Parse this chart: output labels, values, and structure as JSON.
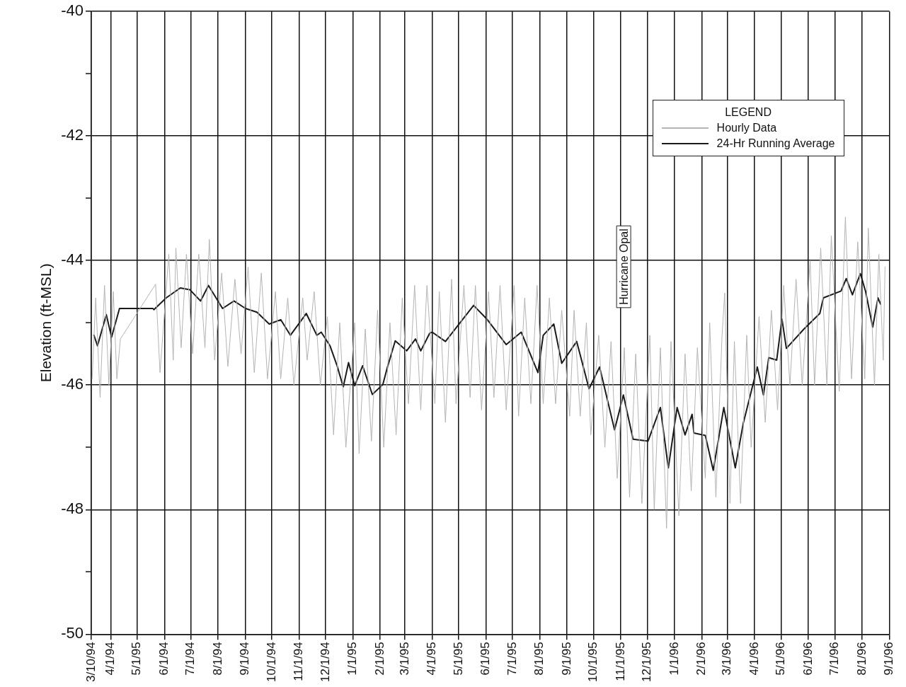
{
  "chart_data": {
    "type": "line",
    "ylabel": "Elevation (ft-MSL)",
    "legend_title": "LEGEND",
    "legend": "top right",
    "grid": true,
    "marker": "none",
    "line_style": "solid",
    "xlim": [
      "1994-03-10",
      "1996-09-01"
    ],
    "xticks": [
      {
        "value": "1994-03-10",
        "label": "3/10/94"
      },
      {
        "value": "1994-04-01",
        "label": "4/1/94"
      },
      {
        "value": "1994-05-01",
        "label": "5/1/95"
      },
      {
        "value": "1994-06-01",
        "label": "6/1/94"
      },
      {
        "value": "1994-07-01",
        "label": "7/1/94"
      },
      {
        "value": "1994-08-01",
        "label": "8/1/94"
      },
      {
        "value": "1994-09-01",
        "label": "9/1/94"
      },
      {
        "value": "1994-10-01",
        "label": "10/1/94"
      },
      {
        "value": "1994-11-01",
        "label": "11/1/94"
      },
      {
        "value": "1994-12-01",
        "label": "12/1/94"
      },
      {
        "value": "1995-01-01",
        "label": "1/1/95"
      },
      {
        "value": "1995-02-01",
        "label": "2/1/95"
      },
      {
        "value": "1995-03-01",
        "label": "3/1/95"
      },
      {
        "value": "1995-04-01",
        "label": "4/1/95"
      },
      {
        "value": "1995-05-01",
        "label": "5/1/95"
      },
      {
        "value": "1995-06-01",
        "label": "6/1/95"
      },
      {
        "value": "1995-07-01",
        "label": "7/1/95"
      },
      {
        "value": "1995-08-01",
        "label": "8/1/95"
      },
      {
        "value": "1995-09-01",
        "label": "9/1/95"
      },
      {
        "value": "1995-10-01",
        "label": "10/1/95"
      },
      {
        "value": "1995-11-01",
        "label": "11/1/95"
      },
      {
        "value": "1995-12-01",
        "label": "12/1/95"
      },
      {
        "value": "1996-01-01",
        "label": "1/1/96"
      },
      {
        "value": "1996-02-01",
        "label": "2/1/96"
      },
      {
        "value": "1996-03-01",
        "label": "3/1/96"
      },
      {
        "value": "1996-04-01",
        "label": "4/1/96"
      },
      {
        "value": "1996-05-01",
        "label": "5/1/96"
      },
      {
        "value": "1996-06-01",
        "label": "6/1/96"
      },
      {
        "value": "1996-07-01",
        "label": "7/1/96"
      },
      {
        "value": "1996-08-01",
        "label": "8/1/96"
      },
      {
        "value": "1996-09-01",
        "label": "9/1/96"
      }
    ],
    "ylim": [
      -50,
      -40
    ],
    "yticks": [
      -50,
      {
        "value": -49,
        "label": null
      },
      -48,
      {
        "value": -47,
        "label": null
      },
      -46,
      {
        "value": -45,
        "label": null
      },
      -44,
      {
        "value": -43,
        "label": null
      },
      -42,
      {
        "value": -41,
        "label": null
      },
      -40
    ],
    "annotations": [
      "Hurricane Opal"
    ],
    "series": [
      {
        "name": "Hourly Data",
        "color": "#b4b4b4",
        "x": [
          "1994-03-11",
          "1994-03-15",
          "1994-03-20",
          "1994-03-25",
          "1994-03-30",
          "1994-04-04",
          "1994-04-08",
          "1994-04-12",
          "1994-05-22",
          "1994-05-27",
          "1994-06-06",
          "1994-06-11",
          "1994-06-14",
          "1994-06-20",
          "1994-06-26",
          "1994-07-03",
          "1994-07-10",
          "1994-07-17",
          "1994-07-22",
          "1994-07-28",
          "1994-08-05",
          "1994-08-12",
          "1994-08-20",
          "1994-08-27",
          "1994-09-04",
          "1994-09-11",
          "1994-09-19",
          "1994-09-26",
          "1994-10-05",
          "1994-10-11",
          "1994-10-19",
          "1994-10-26",
          "1994-11-05",
          "1994-11-10",
          "1994-11-18",
          "1994-11-25",
          "1994-12-03",
          "1994-12-10",
          "1994-12-17",
          "1994-12-24",
          "1995-01-03",
          "1995-01-08",
          "1995-01-15",
          "1995-01-22",
          "1995-01-29",
          "1995-02-05",
          "1995-02-12",
          "1995-02-19",
          "1995-02-26",
          "1995-03-05",
          "1995-03-12",
          "1995-03-19",
          "1995-03-26",
          "1995-04-04",
          "1995-04-09",
          "1995-04-16",
          "1995-04-23",
          "1995-04-28",
          "1995-05-07",
          "1995-05-14",
          "1995-05-20",
          "1995-05-27",
          "1995-06-04",
          "1995-06-10",
          "1995-06-17",
          "1995-06-24",
          "1995-07-03",
          "1995-07-08",
          "1995-07-15",
          "1995-07-22",
          "1995-07-29",
          "1995-08-05",
          "1995-08-12",
          "1995-08-19",
          "1995-08-26",
          "1995-09-04",
          "1995-09-09",
          "1995-09-16",
          "1995-09-23",
          "1995-09-28",
          "1995-10-07",
          "1995-10-14",
          "1995-10-21",
          "1995-10-28",
          "1995-11-05",
          "1995-11-11",
          "1995-11-18",
          "1995-11-25",
          "1995-12-04",
          "1995-12-09",
          "1995-12-16",
          "1995-12-23",
          "1995-12-28",
          "1996-01-06",
          "1996-01-13",
          "1996-01-20",
          "1996-01-27",
          "1996-02-05",
          "1996-02-10",
          "1996-02-17",
          "1996-02-24",
          "1996-02-27",
          "1996-03-04",
          "1996-03-09",
          "1996-03-16",
          "1996-03-23",
          "1996-03-28",
          "1996-04-06",
          "1996-04-13",
          "1996-04-20",
          "1996-04-27",
          "1996-05-04",
          "1996-05-11",
          "1996-05-18",
          "1996-05-25",
          "1996-06-03",
          "1996-06-08",
          "1996-06-15",
          "1996-06-22",
          "1996-06-27",
          "1996-07-06",
          "1996-07-13",
          "1996-07-20",
          "1996-07-27",
          "1996-08-04",
          "1996-08-08",
          "1996-08-15",
          "1996-08-20",
          "1996-08-25",
          "1996-08-27"
        ],
        "values": [
          -45.9,
          -44.6,
          -46.2,
          -44.4,
          -46.0,
          -44.5,
          -45.9,
          -45.26,
          -44.38,
          -45.8,
          -43.9,
          -45.6,
          -43.8,
          -45.4,
          -43.9,
          -45.5,
          -43.9,
          -45.4,
          -43.66,
          -45.6,
          -44.2,
          -45.7,
          -44.3,
          -45.5,
          -44.1,
          -45.8,
          -44.2,
          -45.9,
          -44.5,
          -45.9,
          -44.6,
          -46.0,
          -44.6,
          -45.6,
          -44.5,
          -46.0,
          -44.9,
          -46.8,
          -45.0,
          -47.0,
          -45.0,
          -47.1,
          -45.1,
          -46.9,
          -44.8,
          -47.0,
          -45.0,
          -46.8,
          -44.6,
          -46.3,
          -44.4,
          -46.4,
          -44.4,
          -46.3,
          -44.5,
          -46.6,
          -44.3,
          -46.3,
          -44.4,
          -46.2,
          -44.4,
          -46.4,
          -44.5,
          -46.2,
          -44.4,
          -46.4,
          -44.4,
          -46.5,
          -44.6,
          -46.3,
          -44.4,
          -46.3,
          -44.6,
          -46.3,
          -44.8,
          -46.5,
          -44.8,
          -46.5,
          -45.0,
          -46.8,
          -45.2,
          -47.0,
          -45.3,
          -47.5,
          -45.4,
          -47.8,
          -45.5,
          -47.9,
          -45.2,
          -48.0,
          -45.4,
          -48.3,
          -45.3,
          -48.1,
          -45.5,
          -47.7,
          -45.4,
          -47.5,
          -45.0,
          -47.8,
          -45.2,
          -44.52,
          -47.9,
          -45.3,
          -47.9,
          -45.2,
          -47.0,
          -44.9,
          -46.6,
          -44.8,
          -46.4,
          -44.4,
          -46.0,
          -44.3,
          -46.0,
          -44.0,
          -46.0,
          -43.8,
          -46.0,
          -43.6,
          -46.1,
          -43.3,
          -45.9,
          -43.7,
          -45.9,
          -43.48,
          -46.0,
          -43.9,
          -45.6,
          -44.1
        ]
      },
      {
        "name": "24-Hr Running Average",
        "color": "#1a1a1a",
        "x": [
          "1994-03-13",
          "1994-03-17",
          "1994-03-27",
          "1994-04-02",
          "1994-04-11",
          "1994-05-19",
          "1994-05-20",
          "1994-06-03",
          "1994-06-19",
          "1994-06-30",
          "1994-07-12",
          "1994-07-21",
          "1994-08-06",
          "1994-08-19",
          "1994-09-01",
          "1994-09-14",
          "1994-09-28",
          "1994-10-11",
          "1994-10-22",
          "1994-11-09",
          "1994-11-21",
          "1994-11-26",
          "1994-12-06",
          "1994-12-14",
          "1994-12-21",
          "1994-12-27",
          "1995-01-03",
          "1995-01-12",
          "1995-01-23",
          "1995-02-04",
          "1995-02-09",
          "1995-02-18",
          "1995-03-03",
          "1995-03-13",
          "1995-03-19",
          "1995-03-29",
          "1995-04-01",
          "1995-04-16",
          "1995-05-18",
          "1995-06-02",
          "1995-06-24",
          "1995-07-11",
          "1995-07-30",
          "1995-08-05",
          "1995-08-17",
          "1995-08-26",
          "1995-09-12",
          "1995-09-26",
          "1995-10-08",
          "1995-10-25",
          "1995-11-04",
          "1995-11-15",
          "1995-12-02",
          "1995-12-16",
          "1995-12-25",
          "1996-01-04",
          "1996-01-13",
          "1996-01-21",
          "1996-01-23",
          "1996-02-05",
          "1996-02-14",
          "1996-02-26",
          "1996-03-10",
          "1996-03-19",
          "1996-04-04",
          "1996-04-11",
          "1996-04-17",
          "1996-04-26",
          "1996-05-02",
          "1996-05-07",
          "1996-05-27",
          "1996-06-14",
          "1996-06-18",
          "1996-07-08",
          "1996-07-14",
          "1996-07-21",
          "1996-07-30",
          "1996-08-05",
          "1996-08-13",
          "1996-08-19",
          "1996-08-22"
        ],
        "values": [
          -45.2,
          -45.37,
          -44.87,
          -45.23,
          -44.77,
          -44.77,
          -44.79,
          -44.6,
          -44.44,
          -44.47,
          -44.65,
          -44.4,
          -44.77,
          -44.65,
          -44.77,
          -44.83,
          -45.02,
          -44.95,
          -45.2,
          -44.85,
          -45.2,
          -45.15,
          -45.37,
          -45.69,
          -46.03,
          -45.64,
          -46.01,
          -45.69,
          -46.15,
          -45.99,
          -45.72,
          -45.29,
          -45.45,
          -45.26,
          -45.45,
          -45.17,
          -45.15,
          -45.3,
          -44.72,
          -44.94,
          -45.35,
          -45.15,
          -45.8,
          -45.2,
          -45.02,
          -45.65,
          -45.3,
          -46.06,
          -45.71,
          -46.72,
          -46.16,
          -46.87,
          -46.9,
          -46.36,
          -47.33,
          -46.36,
          -46.8,
          -46.47,
          -46.77,
          -46.81,
          -47.37,
          -46.36,
          -47.33,
          -46.62,
          -45.71,
          -46.16,
          -45.56,
          -45.6,
          -44.94,
          -45.41,
          -45.1,
          -44.85,
          -44.6,
          -44.49,
          -44.29,
          -44.55,
          -44.21,
          -44.5,
          -45.07,
          -44.6,
          -44.7
        ]
      }
    ]
  }
}
